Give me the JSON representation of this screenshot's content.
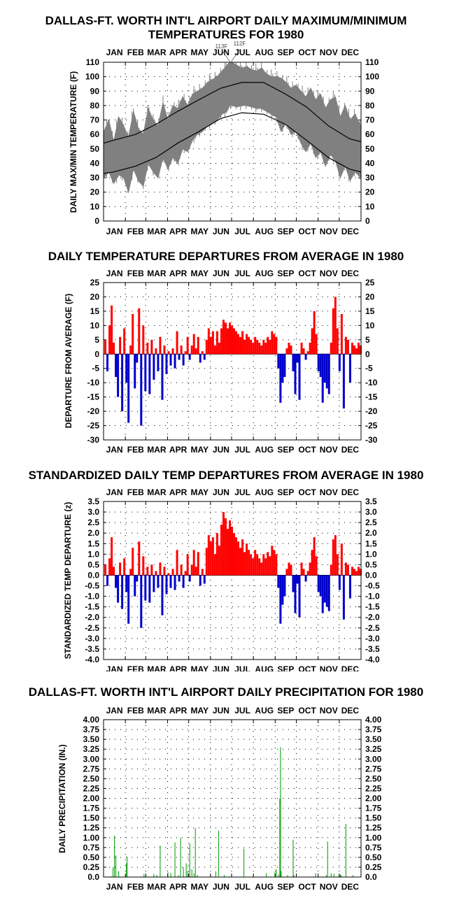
{
  "colors": {
    "positive": "#ff0000",
    "negative": "#0000cc",
    "range": "#808080",
    "normal": "#000000",
    "precip": "#009900",
    "grid": "#000000"
  },
  "chart_data": [
    {
      "id": "temps",
      "type": "area",
      "title_lines": [
        "DALLAS-FT. WORTH INT'L AIRPORT DAILY MAXIMUM/MINIMUM",
        "TEMPERATURES FOR 1980"
      ],
      "ylabel": "DAILY MAX/MIN TEMPERATURE (F)",
      "months": [
        "JAN",
        "FEB",
        "MAR",
        "APR",
        "MAY",
        "JUN",
        "JUL",
        "AUG",
        "SEP",
        "OCT",
        "NOV",
        "DEC"
      ],
      "ylim": [
        0,
        110
      ],
      "yticks": [
        "0",
        "10",
        "20",
        "30",
        "40",
        "50",
        "60",
        "70",
        "80",
        "90",
        "100",
        "110"
      ],
      "grid": true,
      "annotations": [
        {
          "text": "113F",
          "day": 180,
          "value": 113
        },
        {
          "text": "112F",
          "day": 182,
          "value": 112
        }
      ],
      "series": [
        {
          "role": "normal_high",
          "x": [
            1,
            15,
            46,
            75,
            106,
            136,
            167,
            197,
            228,
            259,
            289,
            320,
            350,
            366
          ],
          "values": [
            54,
            56,
            60,
            67,
            76,
            84,
            92,
            96,
            96,
            88,
            79,
            66,
            57,
            55
          ]
        },
        {
          "role": "normal_low",
          "x": [
            1,
            15,
            46,
            75,
            106,
            136,
            167,
            197,
            228,
            259,
            289,
            320,
            350,
            366
          ],
          "values": [
            33,
            34,
            38,
            44,
            54,
            62,
            71,
            75,
            74,
            67,
            56,
            44,
            36,
            34
          ]
        },
        {
          "role": "daily_max_min_band",
          "x": [
            1,
            8,
            15,
            22,
            29,
            36,
            43,
            50,
            57,
            64,
            71,
            78,
            85,
            92,
            99,
            106,
            113,
            120,
            127,
            134,
            141,
            148,
            155,
            162,
            169,
            176,
            180,
            183,
            190,
            197,
            204,
            211,
            218,
            225,
            232,
            239,
            246,
            253,
            260,
            267,
            274,
            281,
            288,
            295,
            302,
            309,
            316,
            323,
            330,
            337,
            344,
            351,
            358,
            366
          ],
          "max": [
            62,
            70,
            55,
            72,
            66,
            58,
            76,
            64,
            60,
            78,
            70,
            66,
            82,
            70,
            80,
            78,
            86,
            80,
            88,
            90,
            92,
            96,
            98,
            100,
            104,
            108,
            113,
            112,
            108,
            106,
            107,
            105,
            104,
            106,
            102,
            100,
            100,
            99,
            96,
            92,
            94,
            90,
            86,
            92,
            84,
            88,
            78,
            84,
            86,
            72,
            80,
            70,
            74,
            66
          ],
          "min": [
            30,
            34,
            26,
            32,
            30,
            20,
            36,
            28,
            24,
            40,
            34,
            30,
            44,
            36,
            44,
            40,
            50,
            48,
            56,
            60,
            62,
            66,
            68,
            70,
            74,
            76,
            80,
            80,
            79,
            80,
            80,
            79,
            78,
            78,
            76,
            74,
            72,
            62,
            68,
            60,
            62,
            54,
            48,
            54,
            44,
            48,
            38,
            46,
            42,
            30,
            38,
            28,
            34,
            30
          ]
        }
      ]
    },
    {
      "id": "departures",
      "type": "bar",
      "title_lines": [
        "DAILY TEMPERATURE DEPARTURES FROM AVERAGE IN 1980"
      ],
      "ylabel": "DEPARTURE FROM AVERAGE (F)",
      "months": [
        "JAN",
        "FEB",
        "MAR",
        "APR",
        "MAY",
        "JUN",
        "JUL",
        "AUG",
        "SEP",
        "OCT",
        "NOV",
        "DEC"
      ],
      "ylim": [
        -30,
        25
      ],
      "yticks": [
        "-30",
        "-25",
        "-20",
        "-15",
        "-10",
        "-5",
        "0",
        "5",
        "10",
        "15",
        "20",
        "25"
      ],
      "grid": true,
      "x": [
        3,
        6,
        9,
        12,
        15,
        18,
        21,
        24,
        27,
        30,
        33,
        36,
        39,
        42,
        45,
        48,
        51,
        54,
        57,
        60,
        63,
        66,
        69,
        72,
        75,
        78,
        81,
        84,
        87,
        90,
        93,
        96,
        99,
        102,
        105,
        108,
        111,
        114,
        117,
        120,
        123,
        126,
        129,
        132,
        135,
        138,
        141,
        144,
        147,
        150,
        153,
        156,
        159,
        162,
        165,
        168,
        171,
        174,
        177,
        180,
        183,
        186,
        189,
        192,
        195,
        198,
        201,
        204,
        207,
        210,
        213,
        216,
        219,
        222,
        225,
        228,
        231,
        234,
        237,
        240,
        243,
        246,
        249,
        252,
        255,
        258,
        261,
        264,
        267,
        270,
        273,
        276,
        279,
        282,
        285,
        288,
        291,
        294,
        297,
        300,
        303,
        306,
        309,
        312,
        315,
        318,
        321,
        324,
        327,
        330,
        333,
        336,
        339,
        342,
        345,
        348,
        351,
        354,
        357,
        360,
        363,
        366
      ],
      "values": [
        5,
        -6,
        10,
        17,
        4,
        -8,
        -15,
        6,
        -20,
        9,
        -10,
        -24,
        3,
        14,
        -12,
        -3,
        16,
        -25,
        10,
        -13,
        4,
        -14,
        5,
        -9,
        2,
        -6,
        6,
        -16,
        3,
        -7,
        1,
        -4,
        2,
        -5,
        8,
        -2,
        3,
        -4,
        1,
        6,
        -2,
        3,
        7,
        2,
        6,
        -3,
        1,
        -2,
        5,
        9,
        6,
        8,
        3,
        8,
        4,
        9,
        12,
        11,
        9,
        11,
        10,
        9,
        8,
        7,
        6,
        8,
        5,
        7,
        6,
        5,
        4,
        6,
        5,
        4,
        3,
        5,
        4,
        6,
        5,
        8,
        7,
        6,
        -5,
        -17,
        -10,
        -8,
        2,
        4,
        3,
        -6,
        -14,
        -3,
        -16,
        4,
        2,
        -2,
        1,
        4,
        9,
        15,
        7,
        -6,
        -8,
        -17,
        -10,
        -12,
        -14,
        4,
        16,
        20,
        9,
        -6,
        14,
        -19,
        6,
        5,
        -10,
        4,
        3,
        2,
        4,
        3
      ]
    },
    {
      "id": "standardized",
      "type": "bar",
      "title_lines": [
        "STANDARDIZED DAILY TEMP DEPARTURES FROM AVERAGE IN 1980"
      ],
      "ylabel": "STANDARDIZED TEMP DEPARTURE (z)",
      "months": [
        "JAN",
        "FEB",
        "MAR",
        "APR",
        "MAY",
        "JUN",
        "JUL",
        "AUG",
        "SEP",
        "OCT",
        "NOV",
        "DEC"
      ],
      "ylim": [
        -4.0,
        3.5
      ],
      "yticks": [
        "-4.0",
        "-3.5",
        "-3.0",
        "-2.5",
        "-2.0",
        "-1.5",
        "-1.0",
        "-0.5",
        "0.0",
        "0.5",
        "1.0",
        "1.5",
        "2.0",
        "2.5",
        "3.0",
        "3.5"
      ],
      "grid": true,
      "x": [
        3,
        6,
        9,
        12,
        15,
        18,
        21,
        24,
        27,
        30,
        33,
        36,
        39,
        42,
        45,
        48,
        51,
        54,
        57,
        60,
        63,
        66,
        69,
        72,
        75,
        78,
        81,
        84,
        87,
        90,
        93,
        96,
        99,
        102,
        105,
        108,
        111,
        114,
        117,
        120,
        123,
        126,
        129,
        132,
        135,
        138,
        141,
        144,
        147,
        150,
        153,
        156,
        159,
        162,
        165,
        168,
        171,
        174,
        177,
        180,
        183,
        186,
        189,
        192,
        195,
        198,
        201,
        204,
        207,
        210,
        213,
        216,
        219,
        222,
        225,
        228,
        231,
        234,
        237,
        240,
        243,
        246,
        249,
        252,
        255,
        258,
        261,
        264,
        267,
        270,
        273,
        276,
        279,
        282,
        285,
        288,
        291,
        294,
        297,
        300,
        303,
        306,
        309,
        312,
        315,
        318,
        321,
        324,
        327,
        330,
        333,
        336,
        339,
        342,
        345,
        348,
        351,
        354,
        357,
        360,
        363,
        366
      ],
      "values": [
        0.5,
        -0.5,
        0.8,
        1.8,
        0.4,
        -0.6,
        -1.3,
        0.6,
        -1.6,
        0.8,
        -0.8,
        -2.3,
        0.3,
        1.3,
        -1.0,
        -0.3,
        1.6,
        -2.5,
        0.9,
        -1.2,
        0.4,
        -1.3,
        0.5,
        -0.8,
        0.2,
        -0.6,
        0.6,
        -1.9,
        0.4,
        -0.9,
        0.1,
        -0.6,
        0.3,
        -0.7,
        1.2,
        -0.3,
        0.5,
        -0.6,
        0.2,
        1.0,
        -0.3,
        0.5,
        1.2,
        0.4,
        1.1,
        -0.5,
        0.3,
        -0.4,
        1.3,
        1.9,
        1.6,
        1.8,
        1.0,
        2.0,
        1.4,
        2.4,
        3.0,
        2.7,
        2.2,
        2.6,
        2.3,
        2.0,
        1.8,
        1.6,
        1.3,
        1.7,
        1.1,
        1.5,
        1.2,
        1.0,
        0.8,
        1.2,
        1.0,
        0.8,
        0.6,
        1.0,
        0.8,
        1.1,
        0.9,
        1.4,
        1.2,
        1.0,
        -0.6,
        -2.3,
        -1.4,
        -1.0,
        0.3,
        0.6,
        0.5,
        -0.8,
        -1.8,
        -0.4,
        -2.0,
        0.6,
        0.3,
        -0.3,
        0.2,
        0.6,
        1.2,
        1.8,
        0.9,
        -0.8,
        -1.0,
        -1.8,
        -1.3,
        -1.5,
        -1.7,
        0.5,
        1.7,
        1.9,
        1.0,
        -0.7,
        1.5,
        -2.1,
        0.6,
        0.5,
        -1.1,
        0.4,
        0.3,
        0.2,
        0.4,
        0.3
      ]
    },
    {
      "id": "precip",
      "type": "bar",
      "title_lines": [
        "DALLAS-FT. WORTH INT'L AIRPORT DAILY PRECIPITATION FOR 1980"
      ],
      "ylabel": "DAILY PRECIPITATION (IN.)",
      "months": [
        "JAN",
        "FEB",
        "MAR",
        "APR",
        "MAY",
        "JUN",
        "JUL",
        "AUG",
        "SEP",
        "OCT",
        "NOV",
        "DEC"
      ],
      "ylim": [
        0,
        4.0
      ],
      "yticks": [
        "0.0",
        "0.25",
        "0.50",
        "0.75",
        "1.00",
        "1.25",
        "1.50",
        "1.75",
        "2.00",
        "2.25",
        "2.50",
        "2.75",
        "3.00",
        "3.25",
        "3.50",
        "3.75",
        "4.00"
      ],
      "grid": true,
      "x": [
        12,
        14,
        16,
        18,
        22,
        33,
        34,
        58,
        72,
        76,
        81,
        92,
        96,
        102,
        107,
        110,
        114,
        118,
        120,
        123,
        126,
        129,
        131,
        134,
        160,
        164,
        172,
        200,
        232,
        244,
        246,
        249,
        251,
        252,
        253,
        262,
        270,
        271,
        302,
        317,
        319,
        324,
        328,
        335,
        337,
        338,
        345,
        355
      ],
      "values": [
        0.02,
        0.25,
        1.05,
        0.55,
        0.15,
        0.35,
        0.52,
        0.08,
        0.08,
        0.05,
        0.8,
        0.12,
        0.1,
        0.88,
        0.05,
        1.0,
        0.25,
        0.35,
        0.15,
        0.85,
        0.2,
        0.1,
        1.25,
        0.05,
        0.15,
        1.18,
        0.05,
        0.72,
        0.1,
        0.12,
        0.2,
        0.06,
        2.0,
        3.3,
        0.15,
        0.05,
        0.95,
        0.05,
        0.1,
        0.05,
        0.9,
        0.1,
        0.08,
        0.05,
        0.06,
        0.05,
        1.35,
        0.05
      ]
    }
  ]
}
